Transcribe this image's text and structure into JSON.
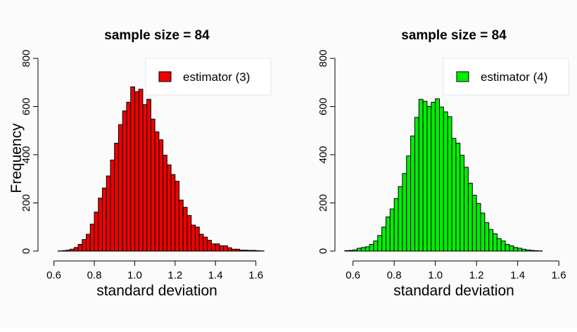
{
  "chart_data": [
    {
      "type": "bar",
      "title": "sample size = 84",
      "xlabel": "standard deviation",
      "ylabel": "Frequency",
      "xlim": [
        0.57,
        1.65
      ],
      "ylim": [
        0,
        800
      ],
      "xticks": [
        "0.6",
        "0.8",
        "1.0",
        "1.2",
        "1.4",
        "1.6"
      ],
      "yticks": [
        "0",
        "200",
        "400",
        "600",
        "800"
      ],
      "legend_position": "top-right",
      "bin_width": 0.02,
      "bin_start": 0.62,
      "series": [
        {
          "name": "estimator (3)",
          "color": "#ee0000",
          "values": [
            1,
            2,
            4,
            8,
            15,
            28,
            48,
            70,
            112,
            162,
            220,
            262,
            312,
            378,
            448,
            525,
            582,
            618,
            682,
            662,
            672,
            608,
            630,
            548,
            495,
            462,
            398,
            358,
            318,
            290,
            212,
            182,
            148,
            108,
            100,
            70,
            58,
            45,
            30,
            30,
            22,
            22,
            14,
            8,
            8,
            4,
            4,
            3,
            3,
            2,
            1
          ]
        }
      ]
    },
    {
      "type": "bar",
      "title": "sample size = 84",
      "xlabel": "standard deviation",
      "ylabel": "",
      "xlim": [
        0.56,
        1.62
      ],
      "ylim": [
        0,
        800
      ],
      "xticks": [
        "0.6",
        "0.8",
        "1.0",
        "1.2",
        "1.4",
        "1.6"
      ],
      "yticks": [
        "0",
        "200",
        "400",
        "600",
        "800"
      ],
      "legend_position": "top-right",
      "bin_width": 0.02,
      "bin_start": 0.56,
      "series": [
        {
          "name": "estimator (4)",
          "color": "#00ee00",
          "values": [
            2,
            3,
            5,
            12,
            15,
            18,
            28,
            42,
            65,
            100,
            142,
            175,
            218,
            268,
            322,
            395,
            478,
            555,
            630,
            622,
            600,
            618,
            632,
            598,
            578,
            558,
            468,
            448,
            398,
            348,
            282,
            232,
            198,
            158,
            118,
            90,
            72,
            52,
            42,
            28,
            22,
            15,
            12,
            8,
            5,
            3,
            2,
            1
          ]
        }
      ]
    }
  ]
}
